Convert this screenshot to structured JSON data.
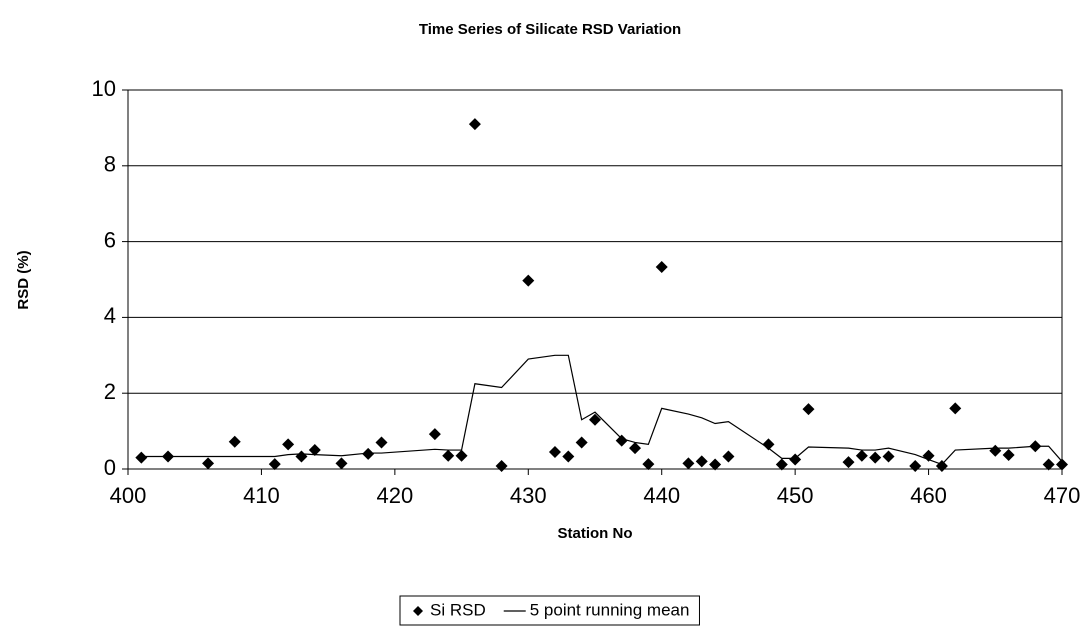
{
  "chart_data": {
    "type": "scatter",
    "title": "Time Series of Silicate RSD Variation",
    "x_label": "Station No",
    "y_label": "RSD (%)",
    "xlim": [
      400,
      470
    ],
    "xticks": [
      400,
      410,
      420,
      430,
      440,
      450,
      460,
      470
    ],
    "ylim": [
      0,
      10
    ],
    "yticks": [
      0,
      2,
      4,
      6,
      8,
      10
    ],
    "grid": true,
    "legend": "bottom",
    "series": [
      {
        "name": "Si RSD",
        "type": "scatter",
        "color": "#000000",
        "x": [
          401,
          403,
          406,
          408,
          411,
          412,
          413,
          414,
          416,
          418,
          419,
          423,
          424,
          425,
          426,
          428,
          430,
          432,
          433,
          434,
          435,
          437,
          438,
          439,
          440,
          442,
          443,
          444,
          445,
          448,
          449,
          450,
          451,
          454,
          455,
          456,
          457,
          459,
          460,
          461,
          462,
          465,
          466,
          468,
          469,
          470
        ],
        "values": [
          0.3,
          0.33,
          0.15,
          0.72,
          0.13,
          0.65,
          0.33,
          0.5,
          0.15,
          0.4,
          0.7,
          0.92,
          0.35,
          0.35,
          9.1,
          0.08,
          4.97,
          0.45,
          0.33,
          0.7,
          1.3,
          0.75,
          0.55,
          0.13,
          5.33,
          0.15,
          0.2,
          0.12,
          0.33,
          0.65,
          0.12,
          0.25,
          1.58,
          0.18,
          0.35,
          0.3,
          0.33,
          0.08,
          0.35,
          0.08,
          1.6,
          0.48,
          0.37,
          0.6,
          0.12,
          0.12
        ]
      },
      {
        "name": "5 point running mean",
        "type": "line",
        "color": "#000000",
        "x": [
          401,
          403,
          406,
          408,
          411,
          412,
          413,
          414,
          416,
          418,
          419,
          423,
          424,
          425,
          426,
          428,
          430,
          432,
          433,
          434,
          435,
          437,
          438,
          439,
          440,
          442,
          443,
          444,
          445,
          448,
          449,
          450,
          451,
          454,
          455,
          456,
          457,
          459,
          460,
          461,
          462,
          465,
          466,
          468,
          469,
          470
        ],
        "values": [
          0.33,
          0.33,
          0.33,
          0.33,
          0.33,
          0.38,
          0.4,
          0.38,
          0.35,
          0.42,
          0.42,
          0.52,
          0.5,
          0.5,
          2.25,
          2.15,
          2.9,
          3.0,
          3.0,
          1.3,
          1.5,
          0.8,
          0.7,
          0.65,
          1.6,
          1.45,
          1.35,
          1.2,
          1.25,
          0.55,
          0.28,
          0.28,
          0.58,
          0.55,
          0.5,
          0.5,
          0.55,
          0.38,
          0.25,
          0.12,
          0.5,
          0.55,
          0.55,
          0.6,
          0.6,
          0.2
        ]
      }
    ]
  }
}
